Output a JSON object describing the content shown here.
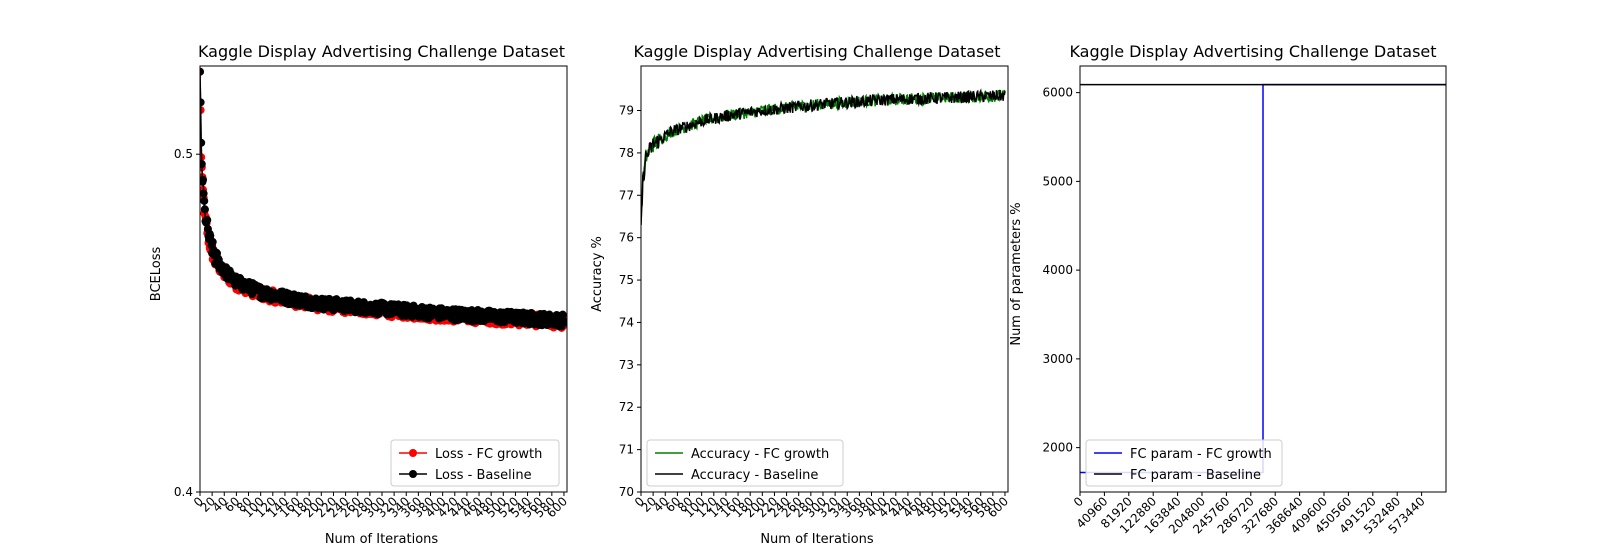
{
  "charts": [
    {
      "id": "loss",
      "type": "line",
      "title": "Kaggle Display Advertising Challenge Dataset",
      "xlabel": "Num of Iterations",
      "ylabel": "BCELoss",
      "xlim": [
        0,
        605
      ],
      "ylim": [
        0.4,
        0.53
      ],
      "yscale": "log",
      "xticks": [
        0,
        20,
        40,
        60,
        80,
        100,
        120,
        140,
        160,
        180,
        200,
        220,
        240,
        260,
        280,
        300,
        320,
        340,
        360,
        380,
        400,
        420,
        440,
        460,
        480,
        500,
        520,
        540,
        560,
        580,
        600
      ],
      "yticks": [
        0.4,
        0.5
      ],
      "ytick_labels": [
        "0.4",
        "0.5"
      ],
      "legend": "lower-right",
      "series": [
        {
          "name": "Loss - FC growth",
          "color": "#ff0000",
          "marker": "circle",
          "anchors": [
            [
              0,
              0.528
            ],
            [
              2,
              0.5
            ],
            [
              4,
              0.49
            ],
            [
              8,
              0.48
            ],
            [
              15,
              0.472
            ],
            [
              25,
              0.466
            ],
            [
              40,
              0.462
            ],
            [
              60,
              0.459
            ],
            [
              100,
              0.456
            ],
            [
              150,
              0.454
            ],
            [
              200,
              0.4525
            ],
            [
              300,
              0.451
            ],
            [
              400,
              0.4495
            ],
            [
              500,
              0.4485
            ],
            [
              600,
              0.4475
            ]
          ],
          "noise": 0.0018
        },
        {
          "name": "Loss - Baseline",
          "color": "#000000",
          "marker": "circle",
          "anchors": [
            [
              0,
              0.528
            ],
            [
              2,
              0.503
            ],
            [
              4,
              0.492
            ],
            [
              8,
              0.481
            ],
            [
              15,
              0.473
            ],
            [
              25,
              0.467
            ],
            [
              40,
              0.463
            ],
            [
              60,
              0.4595
            ],
            [
              100,
              0.4565
            ],
            [
              150,
              0.4545
            ],
            [
              200,
              0.453
            ],
            [
              300,
              0.4515
            ],
            [
              400,
              0.45
            ],
            [
              500,
              0.449
            ],
            [
              600,
              0.448
            ]
          ],
          "noise": 0.0018
        }
      ]
    },
    {
      "id": "accuracy",
      "type": "line",
      "title": "Kaggle Display Advertising Challenge Dataset",
      "xlabel": "Num of Iterations",
      "ylabel": "Accuracy %",
      "xlim": [
        0,
        605
      ],
      "ylim": [
        70,
        80.05
      ],
      "xticks": [
        0,
        20,
        40,
        60,
        80,
        100,
        120,
        140,
        160,
        180,
        200,
        220,
        240,
        260,
        280,
        300,
        320,
        340,
        360,
        380,
        400,
        420,
        440,
        460,
        480,
        500,
        520,
        540,
        560,
        580,
        600
      ],
      "yticks": [
        70,
        71,
        72,
        73,
        74,
        75,
        76,
        77,
        78,
        79
      ],
      "ytick_labels": [
        "70",
        "71",
        "72",
        "73",
        "74",
        "75",
        "76",
        "77",
        "78",
        "79"
      ],
      "legend": "lower-left",
      "series": [
        {
          "name": "Accuracy - FC growth",
          "color": "#008000",
          "anchors": [
            [
              0,
              76.3
            ],
            [
              3,
              77.3
            ],
            [
              8,
              77.9
            ],
            [
              20,
              78.2
            ],
            [
              50,
              78.5
            ],
            [
              100,
              78.75
            ],
            [
              150,
              78.9
            ],
            [
              200,
              79.0
            ],
            [
              300,
              79.15
            ],
            [
              400,
              79.25
            ],
            [
              500,
              79.3
            ],
            [
              600,
              79.35
            ]
          ],
          "noise": 0.14
        },
        {
          "name": "Accuracy - Baseline",
          "color": "#000000",
          "anchors": [
            [
              0,
              76.3
            ],
            [
              3,
              77.3
            ],
            [
              8,
              77.9
            ],
            [
              20,
              78.2
            ],
            [
              50,
              78.5
            ],
            [
              100,
              78.75
            ],
            [
              150,
              78.9
            ],
            [
              200,
              79.0
            ],
            [
              300,
              79.15
            ],
            [
              400,
              79.25
            ],
            [
              500,
              79.3
            ],
            [
              600,
              79.35
            ]
          ],
          "noise": 0.14
        }
      ]
    },
    {
      "id": "params",
      "type": "line",
      "title": "Kaggle Display Advertising Challenge Dataset",
      "xlabel": "",
      "ylabel": "Num of parameters %",
      "xlim": [
        0,
        614400
      ],
      "ylim": [
        1500,
        6300
      ],
      "xticks": [
        0,
        40960,
        81920,
        122880,
        163840,
        204800,
        245760,
        286720,
        327680,
        368640,
        409600,
        450560,
        491520,
        532480,
        573440
      ],
      "yticks": [
        2000,
        3000,
        4000,
        5000,
        6000
      ],
      "ytick_labels": [
        "2000",
        "3000",
        "4000",
        "5000",
        "6000"
      ],
      "legend": "lower-left",
      "series": [
        {
          "name": "FC param - FC growth",
          "color": "#0000ff",
          "points": [
            [
              0,
              1720
            ],
            [
              307200,
              1720
            ],
            [
              307200,
              6090
            ],
            [
              614400,
              6090
            ]
          ]
        },
        {
          "name": "FC param - Baseline",
          "color": "#000000",
          "points": [
            [
              0,
              6090
            ],
            [
              614400,
              6090
            ]
          ]
        }
      ]
    }
  ]
}
